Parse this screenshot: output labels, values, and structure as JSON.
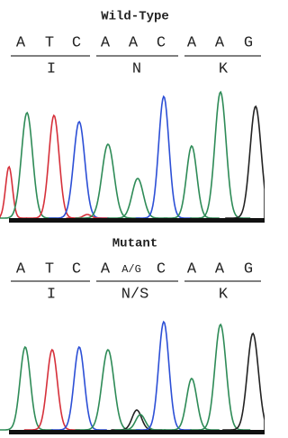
{
  "panels": [
    {
      "title": "Wild-Type",
      "bases": [
        "A",
        "T",
        "C",
        "A",
        "A",
        "C",
        "A",
        "A",
        "G"
      ],
      "amino_acids": [
        "I",
        "N",
        "K"
      ]
    },
    {
      "title": "Mutant",
      "bases": [
        "A",
        "T",
        "C",
        "A",
        "A/G",
        "C",
        "A",
        "A",
        "G"
      ],
      "amino_acids": [
        "I",
        "N/S",
        "K"
      ]
    }
  ]
}
